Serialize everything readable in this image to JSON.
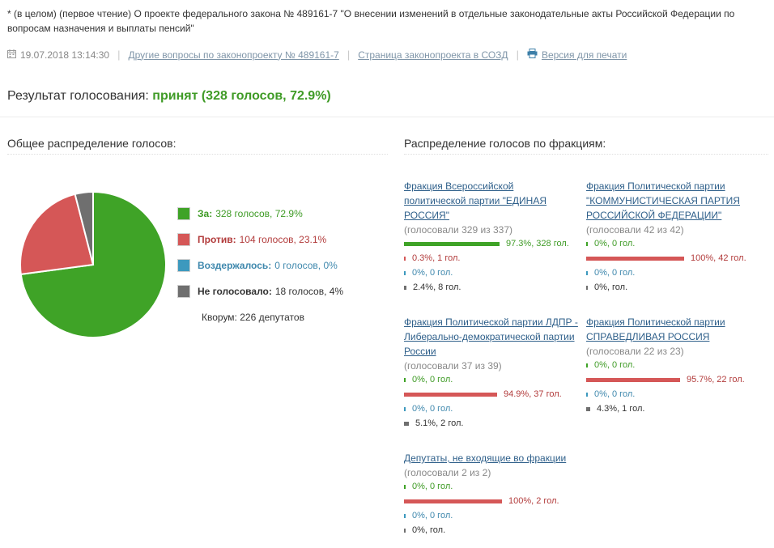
{
  "header": {
    "title": "* (в целом) (первое чтение) О проекте федерального закона № 489161-7 \"О внесении изменений в отдельные законодательные акты Российской Федерации по вопросам назначения и выплаты пенсий\"",
    "date": "19.07.2018 13:14:30",
    "link_other": "Другие вопросы по законопроекту № 489161-7",
    "link_sozd": "Страница законопроекта в СОЗД",
    "link_print": "Версия для печати"
  },
  "result": {
    "label": "Результат голосования:",
    "value": "принят (328 голосов, 72.9%)"
  },
  "overall": {
    "title": "Общее распределение голосов:",
    "quorum": "Кворум: 226 депутатов"
  },
  "factions_title": "Распределение голосов по фракциям:",
  "colors": {
    "for": "#3fa327",
    "against": "#d55757",
    "abstain": "#3d99be",
    "absent": "#6f6f6f"
  },
  "chart_data": [
    {
      "type": "pie",
      "title": "",
      "slices": [
        {
          "label": "За:",
          "text": "328 голосов, 72.9%",
          "value": 328,
          "percent": 72.9,
          "color": "#3fa327"
        },
        {
          "label": "Против:",
          "text": "104 голосов, 23.1%",
          "value": 104,
          "percent": 23.1,
          "color": "#d55757"
        },
        {
          "label": "Воздержалось:",
          "text": "0 голосов, 0%",
          "value": 0,
          "percent": 0,
          "color": "#3d99be"
        },
        {
          "label": "Не голосовало:",
          "text": "18 голосов, 4%",
          "value": 18,
          "percent": 4,
          "color": "#6f6f6f"
        }
      ]
    },
    {
      "type": "bar",
      "title": "",
      "factions": [
        {
          "name": "Фракция Всероссийской политической партии \"ЕДИНАЯ РОССИЯ\"",
          "count": "(голосовали 329 из 337)",
          "rows": [
            {
              "kind": "for",
              "percent": 97.3,
              "text": "97.3%, 328 гол."
            },
            {
              "kind": "against",
              "percent": 0.3,
              "text": "0.3%, 1 гол."
            },
            {
              "kind": "abstain",
              "percent": 0,
              "text": "0%, 0 гол."
            },
            {
              "kind": "absent",
              "percent": 2.4,
              "text": "2.4%, 8 гол."
            }
          ]
        },
        {
          "name": "Фракция Политической партии \"КОММУНИСТИЧЕСКАЯ ПАРТИЯ РОССИЙСКОЙ ФЕДЕРАЦИИ\"",
          "count": "(голосовали 42 из 42)",
          "rows": [
            {
              "kind": "for",
              "percent": 0,
              "text": "0%, 0 гол."
            },
            {
              "kind": "against",
              "percent": 100,
              "text": "100%, 42 гол."
            },
            {
              "kind": "abstain",
              "percent": 0,
              "text": "0%, 0 гол."
            },
            {
              "kind": "absent",
              "percent": 0,
              "text": "0%, гол."
            }
          ]
        },
        {
          "name": "Фракция Политической партии ЛДПР - Либерально-демократической партии России",
          "count": "(голосовали 37 из 39)",
          "rows": [
            {
              "kind": "for",
              "percent": 0,
              "text": "0%, 0 гол."
            },
            {
              "kind": "against",
              "percent": 94.9,
              "text": "94.9%, 37 гол."
            },
            {
              "kind": "abstain",
              "percent": 0,
              "text": "0%, 0 гол."
            },
            {
              "kind": "absent",
              "percent": 5.1,
              "text": "5.1%, 2 гол."
            }
          ]
        },
        {
          "name": "Фракция Политической партии СПРАВЕДЛИВАЯ РОССИЯ",
          "count": "(голосовали 22 из 23)",
          "rows": [
            {
              "kind": "for",
              "percent": 0,
              "text": "0%, 0 гол."
            },
            {
              "kind": "against",
              "percent": 95.7,
              "text": "95.7%, 22 гол."
            },
            {
              "kind": "abstain",
              "percent": 0,
              "text": "0%, 0 гол."
            },
            {
              "kind": "absent",
              "percent": 4.3,
              "text": "4.3%, 1 гол."
            }
          ]
        },
        {
          "name": "Депутаты, не входящие во фракции",
          "count": "(голосовали 2 из 2)",
          "rows": [
            {
              "kind": "for",
              "percent": 0,
              "text": "0%, 0 гол."
            },
            {
              "kind": "against",
              "percent": 100,
              "text": "100%, 2 гол."
            },
            {
              "kind": "abstain",
              "percent": 0,
              "text": "0%, 0 гол."
            },
            {
              "kind": "absent",
              "percent": 0,
              "text": "0%, гол."
            }
          ]
        }
      ]
    }
  ]
}
